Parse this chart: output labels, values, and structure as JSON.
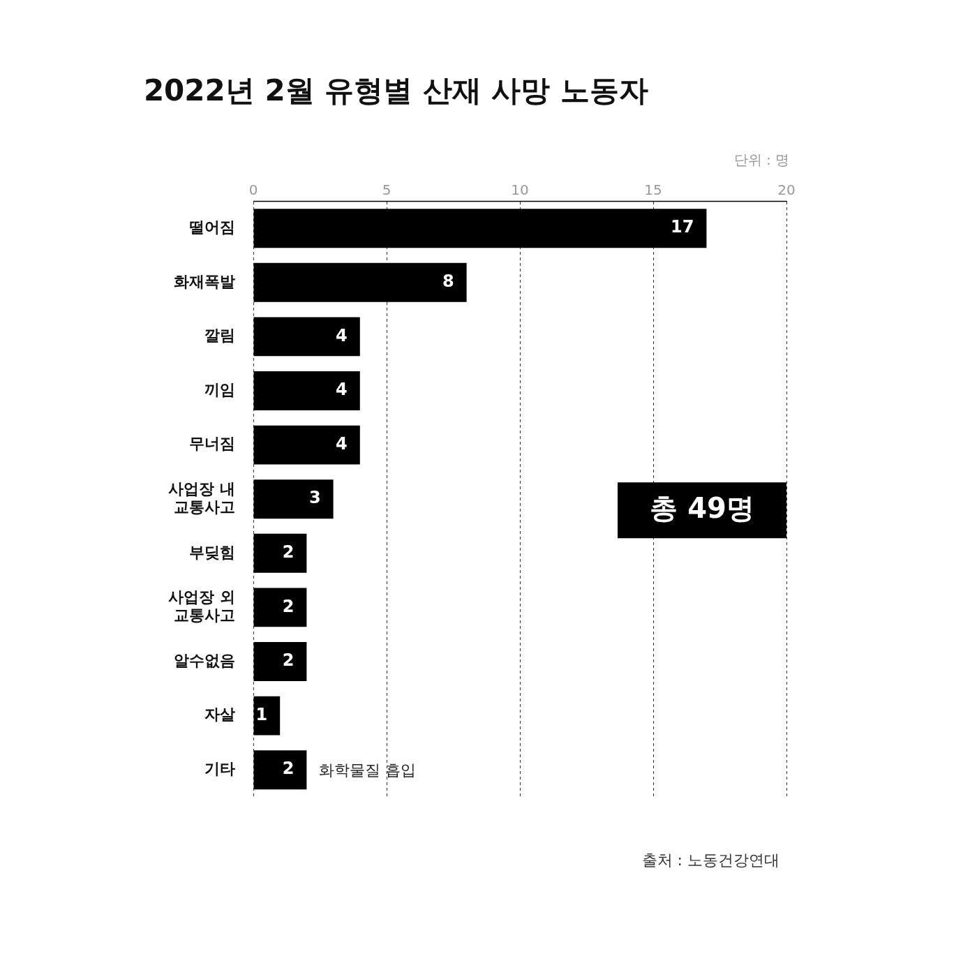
{
  "chart_data": {
    "type": "bar",
    "orientation": "horizontal",
    "title": "2022년 2월 유형별 산재 사망 노동자",
    "categories": [
      "떨어짐",
      "화재폭발",
      "깔림",
      "끼임",
      "무너짐",
      "사업장 내\n교통사고",
      "부딪힘",
      "사업장 외\n교통사고",
      "알수없음",
      "자살",
      "기타"
    ],
    "values": [
      17,
      8,
      4,
      4,
      4,
      3,
      2,
      2,
      2,
      1,
      2
    ],
    "color": "#000000",
    "xlim": [
      0,
      20
    ],
    "xticks": [
      0,
      5,
      10,
      15,
      20
    ],
    "grid": "x",
    "data_labels": true,
    "annotations": [
      "단위 : 명",
      "총 49명",
      {
        "text": "화학물질 흡입",
        "x": 2,
        "y": "기타"
      },
      "출처 : 노동건강연대"
    ]
  }
}
